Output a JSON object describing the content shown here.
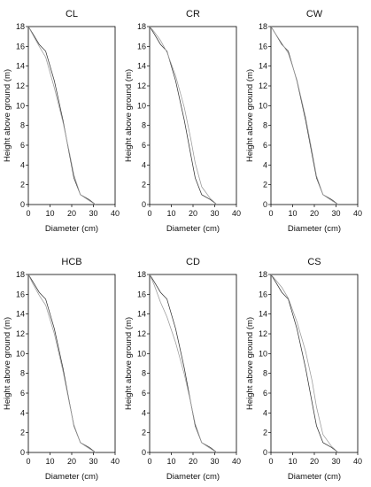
{
  "chart_data": [
    {
      "panel": "CL",
      "type": "line",
      "title": "CL",
      "xlabel": "Diameter  (cm)",
      "ylabel": "Height above ground  (m)",
      "xlim": [
        0,
        40
      ],
      "ylim": [
        0,
        18
      ],
      "xticks": [
        "0",
        "10",
        "20",
        "30",
        "40"
      ],
      "yticks": [
        "0",
        "2",
        "4",
        "6",
        "8",
        "10",
        "12",
        "14",
        "16",
        "18"
      ],
      "grid": false,
      "series": [
        {
          "x": [
            0,
            2,
            5,
            8,
            12,
            16,
            19,
            21,
            24,
            28,
            31
          ],
          "y": [
            18,
            17.3,
            16.2,
            15.5,
            12.5,
            8.5,
            5,
            2.7,
            1.0,
            0.5,
            0
          ],
          "color": "#333333"
        },
        {
          "x": [
            0,
            2,
            5,
            8,
            12,
            16,
            19,
            21,
            24,
            28,
            31
          ],
          "y": [
            18,
            17.2,
            16.0,
            14.9,
            11.8,
            8.3,
            5.2,
            3,
            1.0,
            0.4,
            0
          ],
          "color": "#999999"
        }
      ]
    },
    {
      "panel": "CR",
      "type": "line",
      "title": "CR",
      "xlabel": "Diameter  (cm)",
      "ylabel": "Height above ground  (m)",
      "xlim": [
        0,
        40
      ],
      "ylim": [
        0,
        18
      ],
      "xticks": [
        "0",
        "10",
        "20",
        "30",
        "40"
      ],
      "yticks": [
        "0",
        "2",
        "4",
        "6",
        "8",
        "10",
        "12",
        "14",
        "16",
        "18"
      ],
      "grid": false,
      "series": [
        {
          "x": [
            0,
            2,
            5,
            8,
            12,
            16,
            19,
            21,
            24,
            28,
            31
          ],
          "y": [
            18,
            17.3,
            16.2,
            15.5,
            12.5,
            8.5,
            5,
            2.7,
            1.0,
            0.5,
            0
          ],
          "color": "#333333"
        },
        {
          "x": [
            0,
            2,
            5,
            8,
            12,
            16,
            19,
            21,
            24,
            28,
            31
          ],
          "y": [
            18,
            17.5,
            16.6,
            15.4,
            13.0,
            9.8,
            6.6,
            4.2,
            1.8,
            0.6,
            0
          ],
          "color": "#999999"
        }
      ]
    },
    {
      "panel": "CW",
      "type": "line",
      "title": "CW",
      "xlabel": "Diameter  (cm)",
      "ylabel": "Height above ground  (m)",
      "xlim": [
        0,
        40
      ],
      "ylim": [
        0,
        18
      ],
      "xticks": [
        "0",
        "10",
        "20",
        "30",
        "40"
      ],
      "yticks": [
        "0",
        "2",
        "4",
        "6",
        "8",
        "10",
        "12",
        "14",
        "16",
        "18"
      ],
      "grid": false,
      "series": [
        {
          "x": [
            0,
            2,
            5,
            8,
            12,
            16,
            19,
            21,
            24,
            28,
            31
          ],
          "y": [
            18,
            17.3,
            16.2,
            15.5,
            12.5,
            8.5,
            5,
            2.7,
            1.0,
            0.5,
            0
          ],
          "color": "#333333"
        },
        {
          "x": [
            0,
            2,
            5,
            8,
            12,
            16,
            19,
            21,
            24,
            28,
            31
          ],
          "y": [
            18,
            17.3,
            16.3,
            15.3,
            12.6,
            8.8,
            5.3,
            2.9,
            1.0,
            0.4,
            0
          ],
          "color": "#999999"
        }
      ]
    },
    {
      "panel": "HCB",
      "type": "line",
      "title": "HCB",
      "xlabel": "Diameter  (cm)",
      "ylabel": "Height above ground  (m)",
      "xlim": [
        0,
        40
      ],
      "ylim": [
        0,
        18
      ],
      "xticks": [
        "0",
        "10",
        "20",
        "30",
        "40"
      ],
      "yticks": [
        "0",
        "2",
        "4",
        "6",
        "8",
        "10",
        "12",
        "14",
        "16",
        "18"
      ],
      "grid": false,
      "series": [
        {
          "x": [
            0,
            2,
            5,
            8,
            12,
            16,
            19,
            21,
            24,
            28,
            31
          ],
          "y": [
            18,
            17.3,
            16.2,
            15.5,
            12.5,
            8.5,
            5,
            2.7,
            1.0,
            0.5,
            0
          ],
          "color": "#333333"
        },
        {
          "x": [
            0,
            2,
            5,
            8,
            12,
            16,
            19,
            21,
            24,
            28,
            31
          ],
          "y": [
            18,
            17.1,
            15.9,
            14.9,
            12.0,
            8.2,
            4.9,
            2.8,
            1.0,
            0.4,
            0
          ],
          "color": "#999999"
        }
      ]
    },
    {
      "panel": "CD",
      "type": "line",
      "title": "CD",
      "xlabel": "Diameter  (cm)",
      "ylabel": "Height above ground  (m)",
      "xlim": [
        0,
        40
      ],
      "ylim": [
        0,
        18
      ],
      "xticks": [
        "0",
        "10",
        "20",
        "30",
        "40"
      ],
      "yticks": [
        "0",
        "2",
        "4",
        "6",
        "8",
        "10",
        "12",
        "14",
        "16",
        "18"
      ],
      "grid": false,
      "series": [
        {
          "x": [
            0,
            2,
            5,
            8,
            12,
            16,
            19,
            21,
            24,
            28,
            31
          ],
          "y": [
            18,
            17.3,
            16.2,
            15.5,
            12.5,
            8.5,
            5,
            2.7,
            1.0,
            0.5,
            0
          ],
          "color": "#333333"
        },
        {
          "x": [
            0,
            2,
            5,
            8,
            12,
            16,
            19,
            21,
            24,
            28,
            31
          ],
          "y": [
            18,
            17.0,
            15.2,
            13.7,
            11.1,
            7.9,
            5.0,
            2.9,
            1.0,
            0.4,
            0
          ],
          "color": "#999999"
        }
      ]
    },
    {
      "panel": "CS",
      "type": "line",
      "title": "CS",
      "xlabel": "Diameter  (cm)",
      "ylabel": "Height above ground  (m)",
      "xlim": [
        0,
        40
      ],
      "ylim": [
        0,
        18
      ],
      "xticks": [
        "0",
        "10",
        "20",
        "30",
        "40"
      ],
      "yticks": [
        "0",
        "2",
        "4",
        "6",
        "8",
        "10",
        "12",
        "14",
        "16",
        "18"
      ],
      "grid": false,
      "series": [
        {
          "x": [
            0,
            2,
            5,
            8,
            12,
            16,
            19,
            21,
            24,
            28,
            31
          ],
          "y": [
            18,
            17.3,
            16.2,
            15.5,
            12.5,
            8.5,
            5,
            2.7,
            1.0,
            0.5,
            0
          ],
          "color": "#333333"
        },
        {
          "x": [
            0,
            2,
            5,
            8,
            12,
            16,
            19,
            21,
            24,
            28,
            31
          ],
          "y": [
            18,
            17.5,
            16.7,
            15.6,
            13.2,
            10.2,
            7.2,
            4.6,
            1.8,
            0.6,
            0
          ],
          "color": "#999999"
        }
      ]
    }
  ]
}
